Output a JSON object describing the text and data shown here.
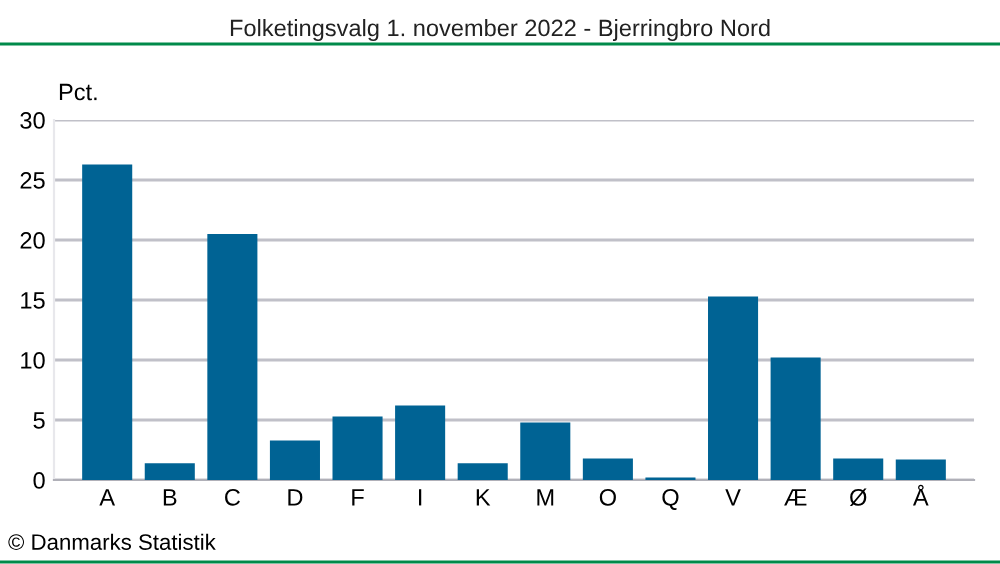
{
  "chart_data": {
    "type": "bar",
    "title": "Folketingsvalg 1. november 2022 - Bjerringbro Nord",
    "ylabel": "Pct.",
    "categories": [
      "A",
      "B",
      "C",
      "D",
      "F",
      "I",
      "K",
      "M",
      "O",
      "Q",
      "V",
      "Æ",
      "Ø",
      "Å"
    ],
    "values": [
      26.3,
      1.4,
      20.5,
      3.3,
      5.3,
      6.2,
      1.4,
      4.8,
      1.8,
      0.2,
      15.3,
      10.2,
      1.8,
      1.7
    ],
    "color": "#006394",
    "ylim": [
      0,
      30
    ],
    "yticks": [
      0,
      5,
      10,
      15,
      20,
      25,
      30
    ],
    "grid": "y",
    "annotations": [
      "© Danmarks Statistik"
    ]
  }
}
